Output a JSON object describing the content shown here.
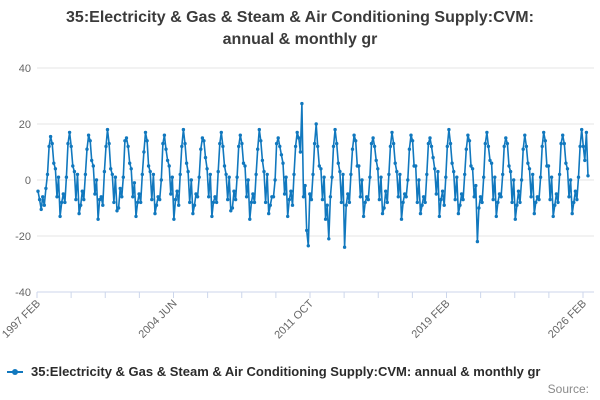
{
  "title": "35:Electricity & Gas & Steam & Air Conditioning Supply:CVM: annual & monthly gr",
  "legend": {
    "label": "35:Electricity & Gas & Steam & Air Conditioning Supply:CVM: annual & monthly gr"
  },
  "footer": {
    "source_label": "Source:"
  },
  "colors": {
    "series": "#1178be",
    "grid": "#e6e6e6",
    "axis": "#ccd6eb",
    "tick_text": "#666666"
  },
  "chart_data": {
    "type": "line",
    "title": "35:Electricity & Gas & Steam & Air Conditioning Supply:CVM: annual & monthly gr",
    "series_name": "35:Electricity & Gas & Steam & Air Conditioning Supply:CVM: annual & monthly gr",
    "frequency": "monthly",
    "x_start": "1997-02",
    "x_end": "2026-02",
    "x_tick_labels": [
      "1997 FEB",
      "2004 JUN",
      "2011 OCT",
      "2019 FEB",
      "2026 FEB"
    ],
    "x_minor_tick_intervals": 16,
    "y_ticks": [
      40,
      20,
      0,
      -20,
      -40
    ],
    "ylim": [
      -40,
      40
    ],
    "grid": "horizontal",
    "legend_position": "bottom-left",
    "marker": "circle",
    "values": [
      -4,
      -7,
      -10.5,
      -6,
      -9,
      -3,
      2,
      12,
      15.5,
      13,
      6,
      4,
      -6,
      1,
      -13,
      -8,
      -5,
      -8,
      1,
      13,
      17,
      12,
      5,
      3,
      -7,
      2,
      -12,
      -9,
      -4,
      -7,
      2,
      11,
      16,
      14,
      7,
      5,
      -5,
      0,
      -14,
      -7,
      -6,
      -9,
      3,
      12,
      18,
      13,
      4,
      2,
      -8,
      1,
      -11,
      -10,
      -3,
      -6,
      1,
      14,
      15,
      12,
      6,
      4,
      -6,
      -1,
      -13,
      -8,
      -5,
      -8,
      2,
      10,
      17,
      14,
      5,
      3,
      -7,
      2,
      -12,
      -9,
      -6,
      -7,
      0,
      13,
      16,
      11,
      7,
      5,
      -5,
      1,
      -14,
      -7,
      -4,
      -9,
      2,
      12,
      18,
      13,
      6,
      3,
      -8,
      0,
      -12,
      -9,
      -5,
      -6,
      1,
      11,
      15,
      14,
      8,
      4,
      -6,
      2,
      -13,
      -8,
      -6,
      -8,
      3,
      13,
      17,
      12,
      5,
      2,
      -7,
      1,
      -11,
      -10,
      -4,
      -7,
      1,
      12,
      16,
      13,
      6,
      5,
      -6,
      0,
      -14,
      -8,
      -5,
      -8,
      2,
      11,
      18,
      14,
      7,
      3,
      -8,
      2,
      -12,
      -9,
      -6,
      -6,
      0,
      13,
      15,
      12,
      9,
      6,
      -5,
      1,
      -13,
      -7,
      -4,
      -9,
      2,
      12,
      17,
      15,
      10,
      27.3,
      -6,
      -2,
      -18,
      -23.5,
      -5,
      -7,
      2,
      13,
      20,
      12,
      5,
      4,
      -7,
      1,
      -14,
      -9,
      -21,
      -6,
      1,
      12,
      18,
      13,
      6,
      3,
      -8,
      2,
      -24,
      -9,
      -5,
      -8,
      2,
      11,
      16,
      14,
      5,
      5,
      -6,
      0,
      -13,
      -8,
      -6,
      -7,
      1,
      13,
      15,
      12,
      7,
      4,
      -7,
      1,
      -12,
      -10,
      -4,
      -8,
      2,
      12,
      17,
      13,
      6,
      3,
      -6,
      2,
      -14,
      -8,
      -5,
      -6,
      0,
      11,
      16,
      14,
      5,
      5,
      -8,
      0,
      -12,
      -9,
      -6,
      -8,
      2,
      13,
      15,
      12,
      8,
      4,
      -5,
      3,
      -13,
      -7,
      -4,
      -9,
      1,
      12,
      18,
      13,
      6,
      3,
      -7,
      1,
      -12,
      -9,
      -5,
      -7,
      2,
      11,
      16,
      14,
      5,
      4,
      -6,
      -2,
      -22,
      -10,
      -6,
      -8,
      1,
      13,
      17,
      12,
      7,
      6,
      -7,
      1,
      -13,
      -8,
      -5,
      -6,
      2,
      12,
      15,
      13,
      5,
      3,
      -8,
      0,
      -14,
      -9,
      -4,
      -8,
      0,
      11,
      16,
      12,
      6,
      4,
      -6,
      2,
      -12,
      -8,
      -6,
      -7,
      1,
      12,
      17,
      14,
      5,
      5,
      -7,
      1,
      -13,
      -9,
      -5,
      -8,
      2,
      13,
      16,
      13,
      6,
      4,
      -6,
      0,
      -12,
      -8,
      -4,
      -7,
      1,
      12,
      18,
      12,
      7,
      17,
      1.5
    ]
  }
}
